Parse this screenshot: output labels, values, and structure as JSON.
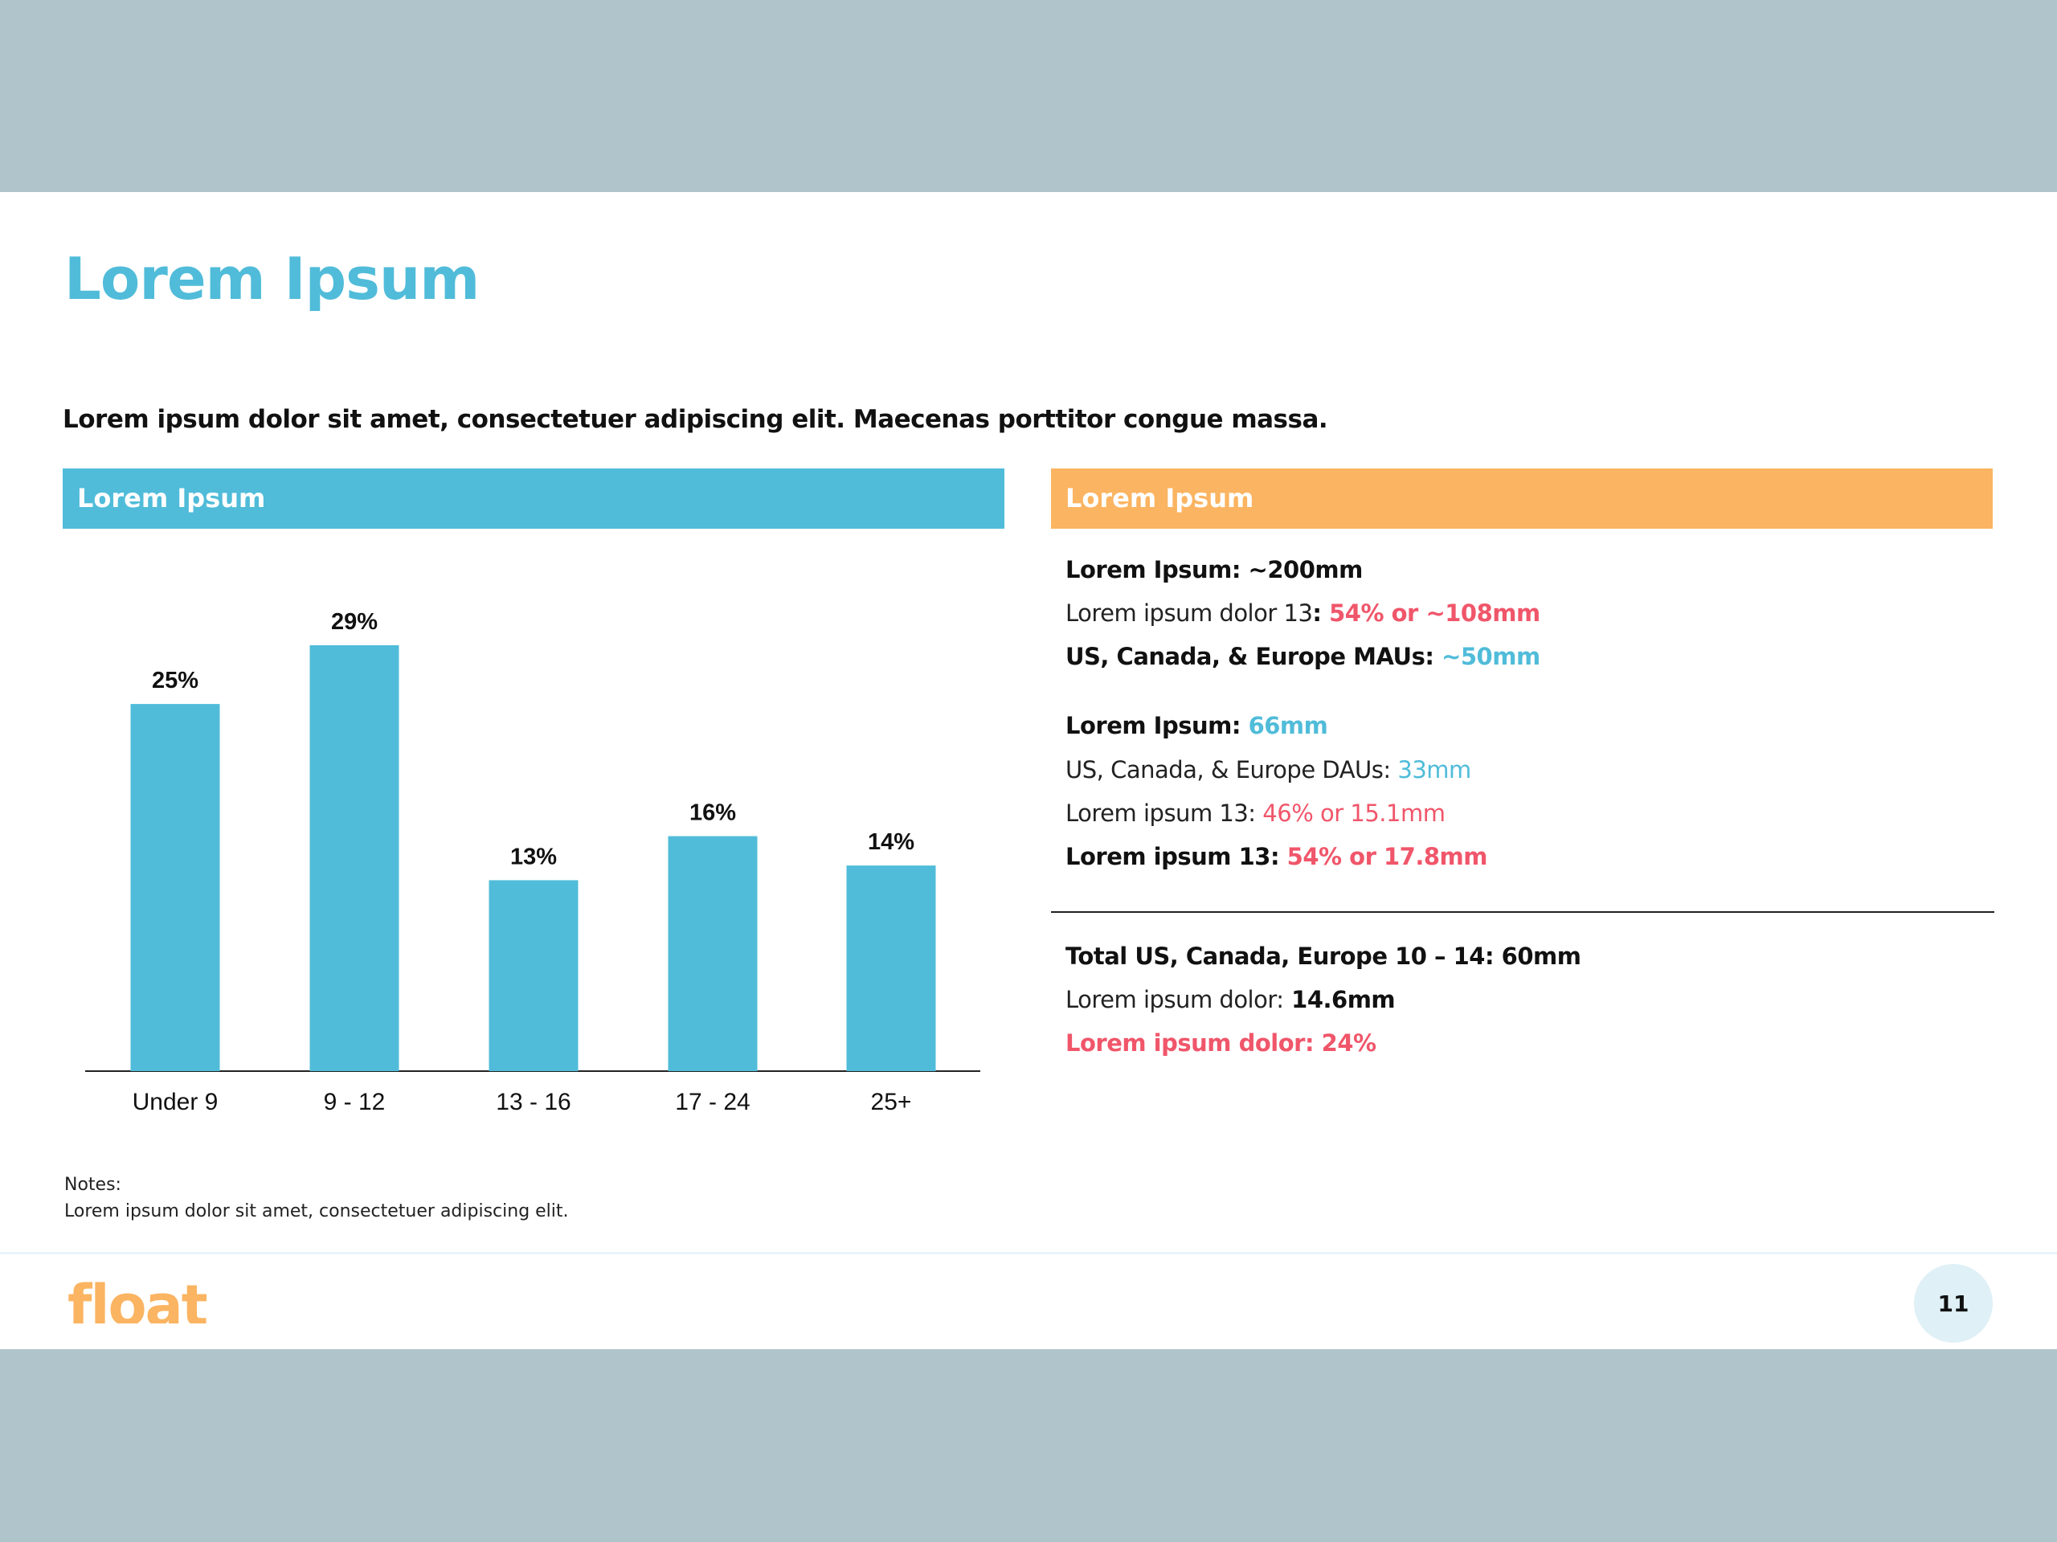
{
  "title": "Lorem Ipsum",
  "subtitle": "Lorem ipsum dolor sit amet, consectetuer adipiscing elit. Maecenas porttitor congue massa.",
  "left_panel": {
    "header": "Lorem Ipsum"
  },
  "right_panel": {
    "header": "Lorem Ipsum",
    "lines": [
      {
        "a": "Lorem Ipsum: ~200mm",
        "b": ""
      },
      {
        "a": "Lorem ipsum dolor 13",
        "colon": ":",
        "b": " 54% or ~108mm"
      },
      {
        "a": "US, Canada, & Europe MAUs:",
        "b": " ~50mm"
      },
      {
        "a": "Lorem Ipsum:",
        "b": " 66mm"
      },
      {
        "a": "US, Canada, & Europe DAUs:",
        "b": " 33mm"
      },
      {
        "a": "Lorem ipsum 13:",
        "b": " 46% or 15.1mm"
      },
      {
        "a": "Lorem ipsum 13:",
        "b": " 54% or 17.8mm"
      },
      {
        "a": "Total US, Canada, Europe 10 – 14: 60mm",
        "b": ""
      },
      {
        "a": "Lorem ipsum dolor:",
        "b": " 14.6mm"
      },
      {
        "a": "Lorem ipsum dolor: 24%",
        "b": ""
      }
    ]
  },
  "notes": {
    "label": "Notes:",
    "text": "Lorem ipsum dolor sit amet, consectetuer adipiscing elit."
  },
  "footer": {
    "logo": "float",
    "page_number": "11"
  },
  "colors": {
    "accent_blue": "#50bcd9",
    "accent_orange": "#fbb461",
    "accent_red": "#f0566a"
  },
  "chart_data": {
    "type": "bar",
    "categories": [
      "Under 9",
      "9 - 12",
      "13 - 16",
      "17 - 24",
      "25+"
    ],
    "values": [
      25,
      29,
      13,
      16,
      14
    ],
    "data_labels": [
      "25%",
      "29%",
      "13%",
      "16%",
      "14%"
    ],
    "ylim": [
      0,
      29
    ],
    "grid": false,
    "legend": "none"
  }
}
